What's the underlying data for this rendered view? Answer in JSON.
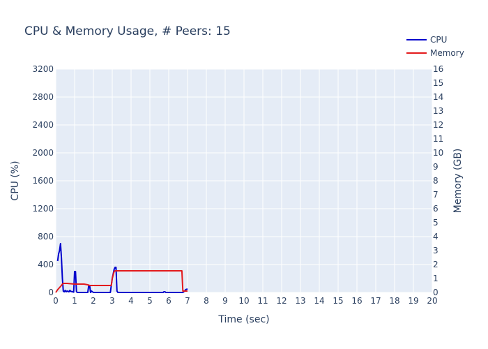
{
  "chart_data": {
    "type": "line",
    "title": "CPU & Memory Usage, # Peers: 15",
    "xlabel": "Time (sec)",
    "ylabel": "CPU (%)",
    "y2label": "Memory (GB)",
    "xlim": [
      0,
      20
    ],
    "ylim": [
      0,
      3200
    ],
    "y2lim": [
      0,
      16
    ],
    "x_ticks": [
      0,
      1,
      2,
      3,
      4,
      5,
      6,
      7,
      8,
      9,
      10,
      11,
      12,
      13,
      14,
      15,
      16,
      17,
      18,
      19,
      20
    ],
    "y_ticks": [
      0,
      400,
      800,
      1200,
      1600,
      2000,
      2400,
      2800,
      3200
    ],
    "y2_ticks": [
      0,
      1,
      2,
      3,
      4,
      5,
      6,
      7,
      8,
      9,
      10,
      11,
      12,
      13,
      14,
      15,
      16
    ],
    "grid": true,
    "legend_position": "top-right",
    "series": [
      {
        "name": "CPU",
        "axis": "y",
        "color": "#0000cc",
        "x": [
          0.1,
          0.15,
          0.2,
          0.25,
          0.3,
          0.35,
          0.4,
          0.45,
          0.5,
          0.55,
          0.6,
          0.7,
          0.75,
          0.8,
          0.9,
          0.95,
          1.0,
          1.05,
          1.1,
          1.15,
          1.2,
          1.3,
          1.5,
          1.7,
          1.75,
          1.8,
          1.85,
          1.9,
          2.0,
          2.1,
          2.9,
          3.0,
          3.1,
          3.15,
          3.2,
          3.25,
          3.3,
          3.5,
          4.0,
          5.0,
          5.7,
          5.75,
          5.8,
          5.85,
          6.0,
          6.5,
          6.75,
          6.8,
          6.85,
          6.9,
          7.0
        ],
        "y": [
          450,
          550,
          600,
          700,
          500,
          200,
          20,
          10,
          30,
          10,
          20,
          10,
          30,
          15,
          10,
          5,
          300,
          300,
          10,
          0,
          0,
          0,
          0,
          0,
          100,
          100,
          0,
          20,
          0,
          0,
          0,
          200,
          330,
          360,
          360,
          20,
          0,
          0,
          0,
          0,
          0,
          10,
          10,
          0,
          0,
          0,
          0,
          10,
          20,
          40,
          50
        ]
      },
      {
        "name": "Memory",
        "axis": "y2",
        "color": "#e31a1c",
        "x": [
          0,
          0.1,
          0.3,
          0.35,
          0.4,
          0.6,
          1.0,
          1.5,
          1.7,
          1.8,
          1.85,
          1.9,
          2.0,
          2.5,
          2.95,
          3.0,
          3.1,
          3.15,
          3.2,
          3.5,
          4.0,
          5.0,
          6.0,
          6.7,
          6.75,
          6.8,
          6.9,
          7.0
        ],
        "y": [
          0,
          0.2,
          0.5,
          0.6,
          0.65,
          0.65,
          0.6,
          0.6,
          0.55,
          0.5,
          0.5,
          0.5,
          0.5,
          0.5,
          0.5,
          1.0,
          1.5,
          1.55,
          1.55,
          1.55,
          1.55,
          1.55,
          1.55,
          1.55,
          0.1,
          0.1,
          0.1,
          0.1
        ]
      }
    ]
  }
}
